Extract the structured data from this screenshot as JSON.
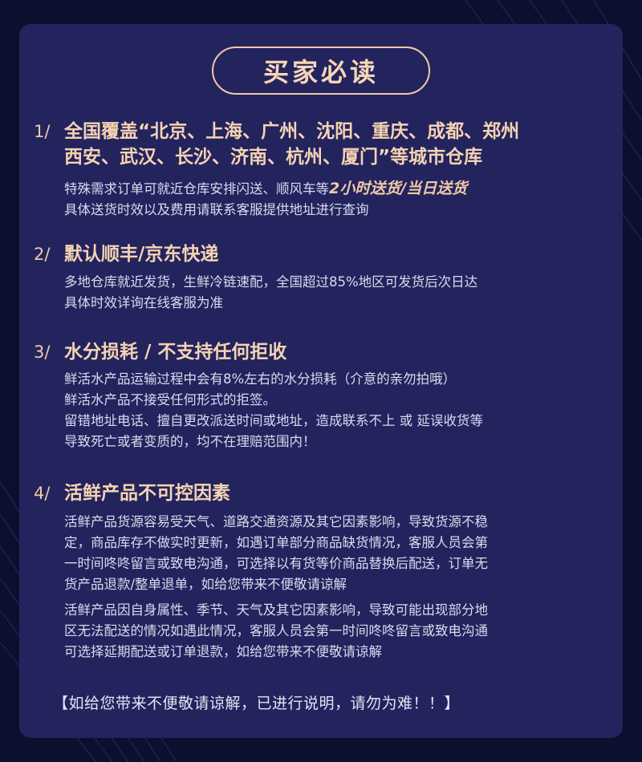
{
  "title": "买家必读",
  "colors": {
    "background": "#0d0f2e",
    "panel": "#23245e",
    "accent": "#f5d2b2",
    "body_text": "#d9dbee"
  },
  "sections": [
    {
      "num": "1/",
      "heading_lines": [
        "全国覆盖“北京、上海、广州、沈阳、重庆、成都、郑州",
        "西安、武汉、长沙、济南、杭州、厦门”等城市仓库"
      ],
      "line1_prefix": "特殊需求订单可就近仓库安排闪送、顺风车等",
      "line1_highlight": "2小时送货/当日送货",
      "line2": "具体送货时效以及费用请联系客服提供地址进行查询"
    },
    {
      "num": "2/",
      "heading": "默认顺丰/京东快递",
      "lines": [
        "多地仓库就近发货，生鲜冷链速配，全国超过85%地区可发货后次日达",
        "具体时效详询在线客服为准"
      ]
    },
    {
      "num": "3/",
      "heading": "水分损耗 / 不支持任何拒收",
      "lines": [
        "鲜活水产品运输过程中会有8%左右的水分损耗（介意的亲勿拍哦）",
        "鲜活水产品不接受任何形式的拒签。",
        "留错地址电话、擅自更改派送时间或地址，造成联系不上 或 延误收货等",
        "导致死亡或者变质的，均不在理赔范围内！"
      ]
    },
    {
      "num": "4/",
      "heading": "活鲜产品不可控因素",
      "lines": [
        "活鲜产品货源容易受天气、道路交通资源及其它因素影响，导致货源不稳",
        "定，商品库存不做实时更新，如遇订单部分商品缺货情况，客服人员会第",
        "一时间咚咚留言或致电沟通，可选择以有货等价商品替换后配送，订单无",
        "货产品退款/整单退单，如给您带来不便敬请谅解",
        "活鲜产品因自身属性、季节、天气及其它因素影响，导致可能出现部分地",
        "区无法配送的情况如遇此情况，客服人员会第一时间咚咚留言或致电沟通",
        "可选择延期配送或订单退款，如给您带来不便敬请谅解"
      ]
    }
  ],
  "footer": "【如给您带来不便敬请谅解，已进行说明，请勿为难！！】"
}
